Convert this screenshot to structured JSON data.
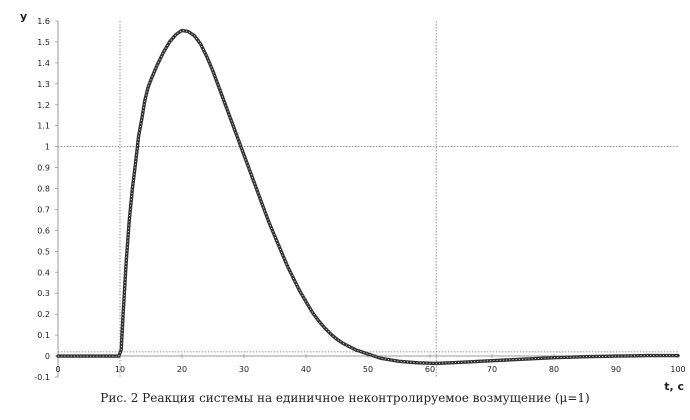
{
  "caption": "Рис. 2 Реакция системы на единичное неконтролируемое возмущение (μ=1)",
  "chart_data": {
    "type": "line",
    "xlabel": "t, c",
    "ylabel": "y",
    "xlim": [
      0,
      100
    ],
    "ylim": [
      -0.1,
      1.6
    ],
    "x_ticks": [
      0,
      10,
      20,
      30,
      40,
      50,
      60,
      70,
      80,
      90,
      100
    ],
    "y_ticks": [
      -0.1,
      0,
      0.1,
      0.2,
      0.3,
      0.4,
      0.5,
      0.6,
      0.7,
      0.8,
      0.9,
      1,
      1.1,
      1.2,
      1.3,
      1.4,
      1.5,
      1.6
    ],
    "y_tick_labels": [
      "-0.1",
      "0",
      "0.1",
      "0.2",
      "0.3",
      "0.4",
      "0.5",
      "0.6",
      "0.7",
      "0.8",
      "0.9",
      "1",
      "1.1",
      "1.2",
      "1.3",
      "1.4",
      "1.5",
      "1.6"
    ],
    "reference_lines": {
      "vertical_x": [
        10,
        61
      ],
      "horizontal_y": [
        1,
        0.02
      ]
    },
    "series": [
      {
        "color": "#333333",
        "points": [
          [
            0,
            0
          ],
          [
            9.8,
            0
          ],
          [
            10.2,
            0.03
          ],
          [
            10.5,
            0.2
          ],
          [
            11,
            0.45
          ],
          [
            11.5,
            0.65
          ],
          [
            12,
            0.8
          ],
          [
            12.5,
            0.92
          ],
          [
            13,
            1.05
          ],
          [
            13.5,
            1.13
          ],
          [
            14,
            1.22
          ],
          [
            14.5,
            1.28
          ],
          [
            15,
            1.32
          ],
          [
            16,
            1.39
          ],
          [
            17,
            1.45
          ],
          [
            18,
            1.5
          ],
          [
            19,
            1.535
          ],
          [
            20,
            1.555
          ],
          [
            21,
            1.55
          ],
          [
            22,
            1.53
          ],
          [
            23,
            1.49
          ],
          [
            24,
            1.43
          ],
          [
            25,
            1.36
          ],
          [
            26,
            1.28
          ],
          [
            27,
            1.2
          ],
          [
            28,
            1.12
          ],
          [
            29,
            1.04
          ],
          [
            30,
            0.96
          ],
          [
            31,
            0.88
          ],
          [
            32,
            0.8
          ],
          [
            33,
            0.72
          ],
          [
            34,
            0.64
          ],
          [
            35,
            0.57
          ],
          [
            36,
            0.5
          ],
          [
            37,
            0.43
          ],
          [
            38,
            0.37
          ],
          [
            39,
            0.31
          ],
          [
            40,
            0.26
          ],
          [
            41,
            0.21
          ],
          [
            42,
            0.17
          ],
          [
            43,
            0.135
          ],
          [
            44,
            0.105
          ],
          [
            45,
            0.08
          ],
          [
            46,
            0.06
          ],
          [
            47,
            0.045
          ],
          [
            48,
            0.03
          ],
          [
            50,
            0.01
          ],
          [
            52,
            -0.01
          ],
          [
            55,
            -0.025
          ],
          [
            58,
            -0.032
          ],
          [
            61,
            -0.035
          ],
          [
            65,
            -0.03
          ],
          [
            70,
            -0.022
          ],
          [
            75,
            -0.015
          ],
          [
            80,
            -0.008
          ],
          [
            85,
            -0.003
          ],
          [
            90,
            0
          ],
          [
            95,
            0.002
          ],
          [
            100,
            0.002
          ]
        ]
      }
    ]
  }
}
